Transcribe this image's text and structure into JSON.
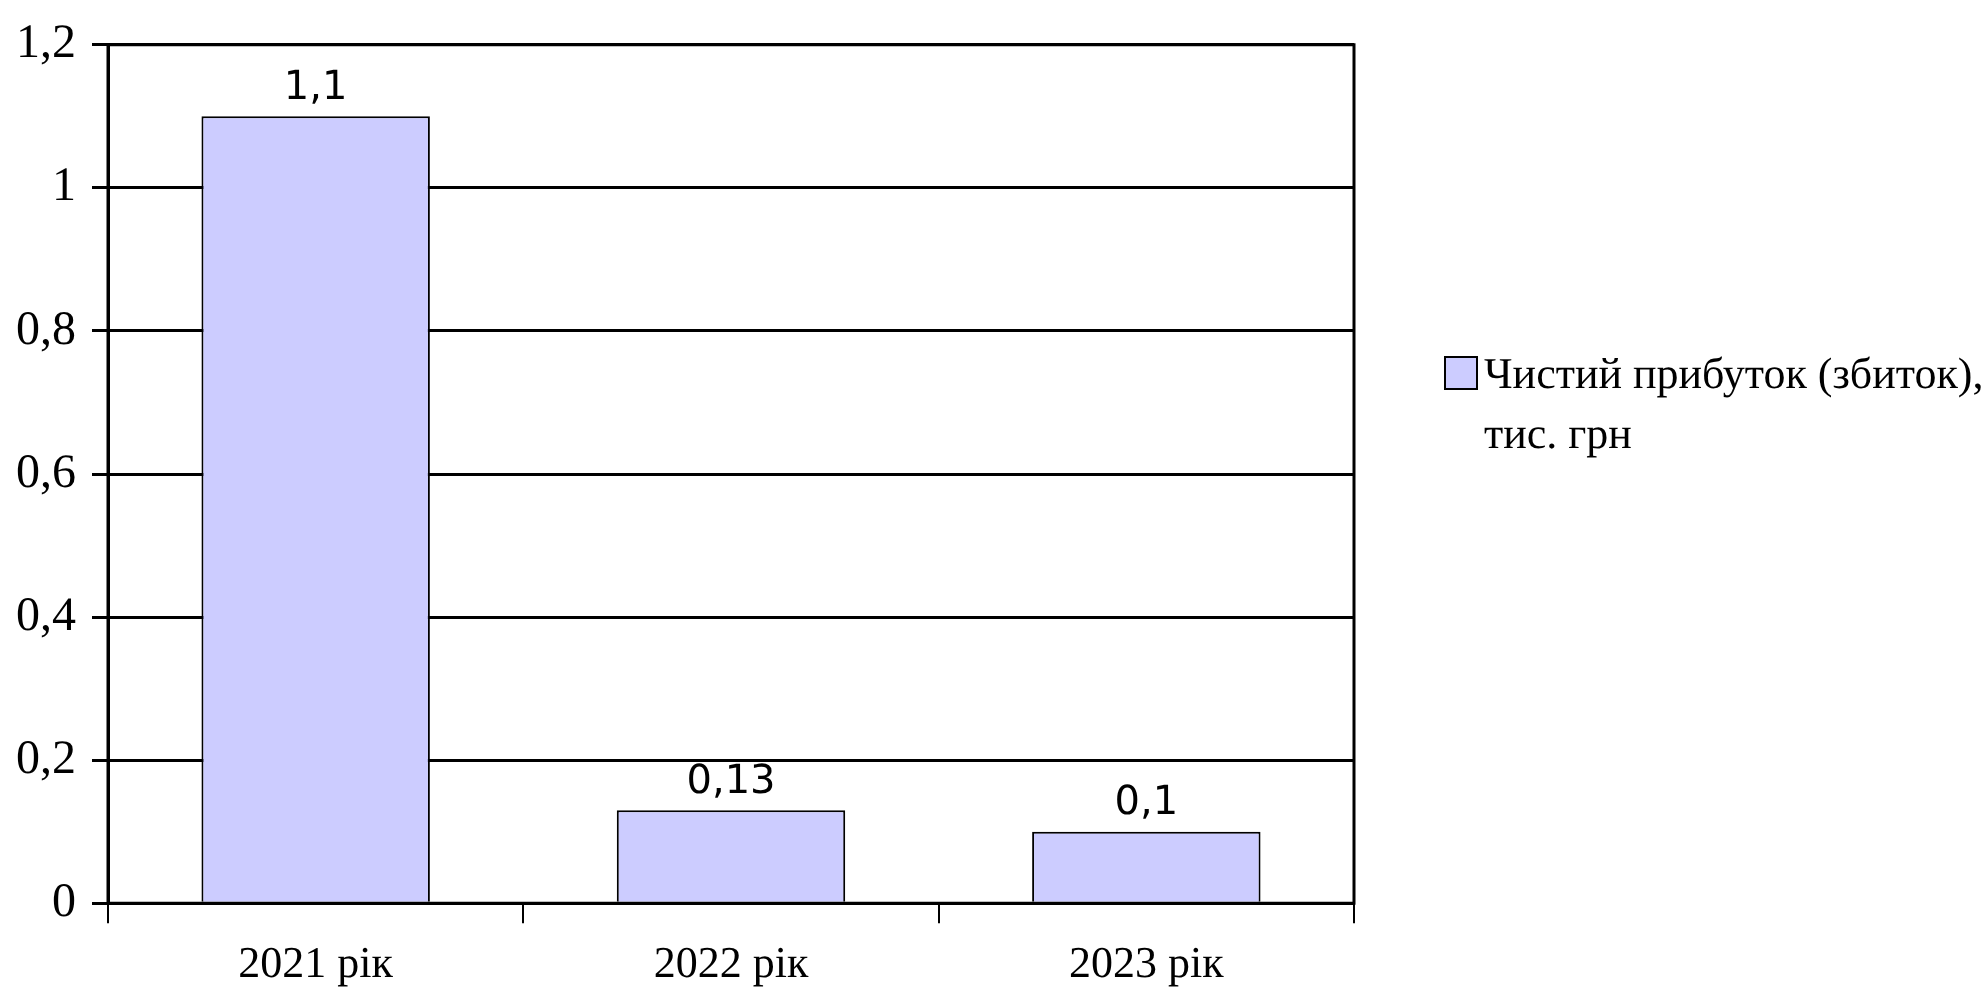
{
  "chart_data": {
    "type": "bar",
    "categories": [
      "2021 рік",
      "2022 рік",
      "2023 рік"
    ],
    "series": [
      {
        "name": "Чистий прибуток (збиток), тис. грн",
        "color": "#ccccff",
        "values": [
          1.1,
          0.13,
          0.1
        ],
        "value_labels": [
          "1,1",
          "0,13",
          "0,1"
        ]
      }
    ],
    "ylim": [
      0,
      1.2
    ],
    "yticks": [
      {
        "value": 0,
        "label": "0"
      },
      {
        "value": 0.2,
        "label": "0,2"
      },
      {
        "value": 0.4,
        "label": "0,4"
      },
      {
        "value": 0.6,
        "label": "0,6"
      },
      {
        "value": 0.8,
        "label": "0,8"
      },
      {
        "value": 1,
        "label": "1"
      },
      {
        "value": 1.2,
        "label": "1,2"
      }
    ],
    "grid": "y",
    "legend": "right"
  }
}
